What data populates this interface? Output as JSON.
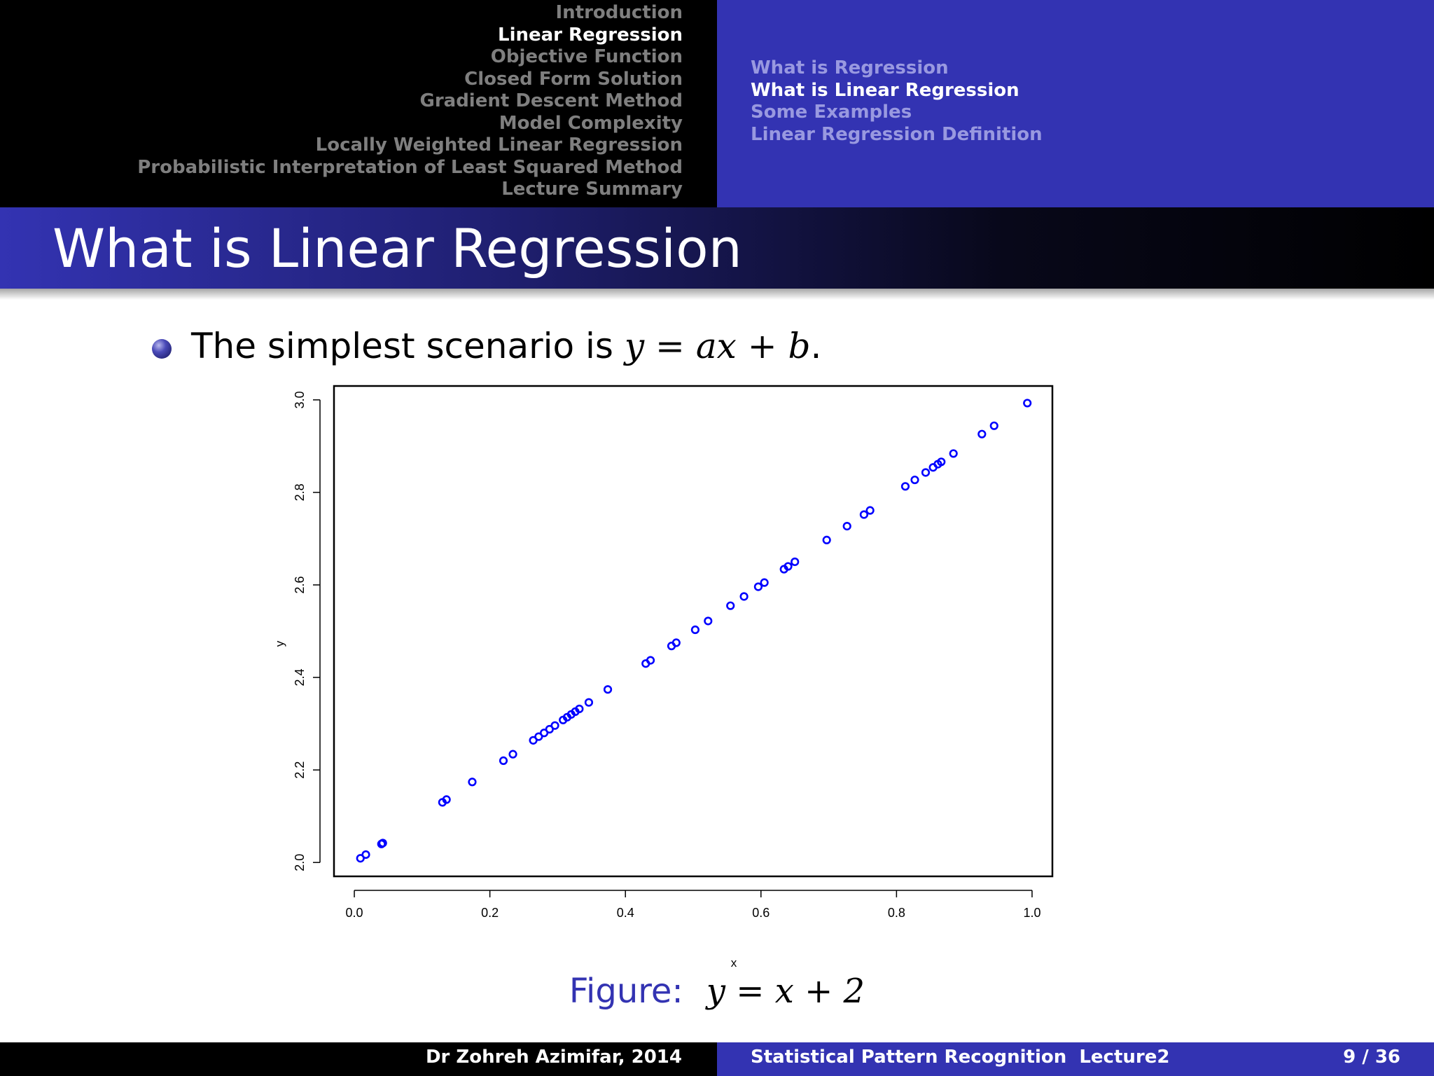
{
  "header": {
    "sections": [
      "Introduction",
      "Linear Regression",
      "Objective Function",
      "Closed Form Solution",
      "Gradient Descent Method",
      "Model Complexity",
      "Locally Weighted Linear Regression",
      "Probabilistic Interpretation of Least Squared Method",
      "Lecture Summary"
    ],
    "active_section": 1,
    "subsections": [
      "What is Regression",
      "What is Linear Regression",
      "Some Examples",
      "Linear Regression Definition"
    ],
    "active_subsection": 1
  },
  "frame": {
    "title": "What is Linear Regression",
    "bullet_text": "The simplest scenario is",
    "bullet_math": "y = ax + b",
    "bullet_end": "."
  },
  "figure": {
    "label": "Figure:",
    "equation": "y = x + 2"
  },
  "footer": {
    "author": "Dr Zohreh Azimifar, 2014",
    "course": "Statistical Pattern Recognition",
    "lecture": "Lecture2",
    "page": "9 / 36"
  },
  "colors": {
    "structure": "#3333b2",
    "inactive_section": "#7f7f7f",
    "inactive_subsection": "#9999e0",
    "points": "#0000ff"
  },
  "chart_data": {
    "type": "scatter",
    "title": "",
    "xlabel": "x",
    "ylabel": "y",
    "xlim": [
      -0.03,
      1.03
    ],
    "ylim": [
      1.97,
      3.03
    ],
    "x_ticks": [
      "0.0",
      "0.2",
      "0.4",
      "0.6",
      "0.8",
      "1.0"
    ],
    "x_tick_values": [
      0.0,
      0.2,
      0.4,
      0.6,
      0.8,
      1.0
    ],
    "y_ticks": [
      "2.0",
      "2.2",
      "2.4",
      "2.6",
      "2.8",
      "3.0"
    ],
    "y_tick_values": [
      2.0,
      2.2,
      2.4,
      2.6,
      2.8,
      3.0
    ],
    "grid": false,
    "marker": "open-circle",
    "x": [
      0.009,
      0.017,
      0.04,
      0.042,
      0.13,
      0.136,
      0.174,
      0.22,
      0.234,
      0.264,
      0.272,
      0.28,
      0.288,
      0.296,
      0.308,
      0.314,
      0.32,
      0.326,
      0.332,
      0.346,
      0.374,
      0.43,
      0.437,
      0.468,
      0.475,
      0.503,
      0.522,
      0.555,
      0.575,
      0.596,
      0.605,
      0.634,
      0.64,
      0.65,
      0.697,
      0.727,
      0.752,
      0.761,
      0.813,
      0.827,
      0.843,
      0.854,
      0.861,
      0.866,
      0.884,
      0.926,
      0.944,
      0.993
    ],
    "y": [
      2.009,
      2.017,
      2.04,
      2.042,
      2.13,
      2.136,
      2.174,
      2.22,
      2.234,
      2.264,
      2.272,
      2.28,
      2.288,
      2.296,
      2.308,
      2.314,
      2.32,
      2.326,
      2.332,
      2.346,
      2.374,
      2.43,
      2.437,
      2.468,
      2.475,
      2.503,
      2.522,
      2.555,
      2.575,
      2.596,
      2.605,
      2.634,
      2.64,
      2.65,
      2.697,
      2.727,
      2.752,
      2.761,
      2.813,
      2.827,
      2.843,
      2.854,
      2.861,
      2.866,
      2.884,
      2.926,
      2.944,
      2.993
    ]
  }
}
